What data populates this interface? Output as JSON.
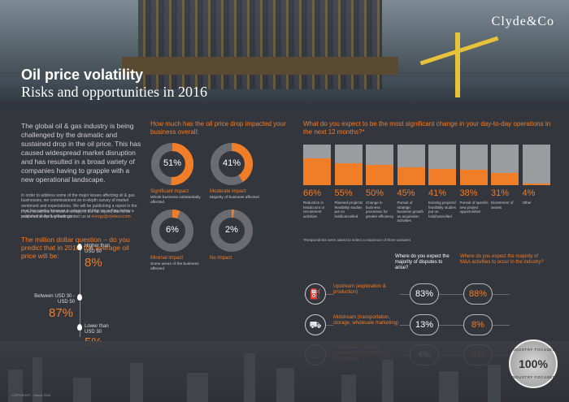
{
  "brand": {
    "logo_text": "Clyde&Co"
  },
  "header": {
    "title_line1": "Oil price volatility",
    "title_line2": "Risks and opportunities in 2016"
  },
  "intro": {
    "paragraph": "The global oil & gas industry is being challenged by the dramatic and sustained drop in the oil price. This has caused widespread market disruption and has resulted in a broad variety of companies having to grapple with a new operational landscape.",
    "small1": "In order to address some of the major issues affecting oil & gas businesses, we commissioned an in-depth survey of market sentiment and expectations. We will be publishing a report in the next few weeks however in advance of this, we outline below a snapshot of our key findings.",
    "small2": "If you would like to receive a copy of the full report, due to be published in April, please contact us at",
    "email": "energy@clydeco.com"
  },
  "million_question": {
    "heading": "The million dollar question – do you predict that in 2016, the average oil price will be:",
    "points": [
      {
        "label": "Higher than USD 50",
        "value": "8%"
      },
      {
        "label": "Between USD 30 - USD 50",
        "value": "87%"
      },
      {
        "label": "Lower than USD 30",
        "value": "5%"
      }
    ]
  },
  "impact": {
    "heading": "How much has the oil price drop impacted your business overall:",
    "items": [
      {
        "value": "51%",
        "pct": 51,
        "label": "Significant impact",
        "sub": "Whole business substantially affected"
      },
      {
        "value": "41%",
        "pct": 41,
        "label": "Moderate impact",
        "sub": "Majority of business affected"
      },
      {
        "value": "6%",
        "pct": 6,
        "label": "Minimal impact",
        "sub": "Some areas of the business affected"
      },
      {
        "value": "2%",
        "pct": 2,
        "label": "No impact",
        "sub": ""
      }
    ]
  },
  "changes": {
    "heading": "What do you expect to be the most significant change in your day-to-day operations in the next 12 months?*",
    "items": [
      {
        "value": "66%",
        "pct": 66,
        "label": "Reduction in headcount or recruitment activities"
      },
      {
        "value": "55%",
        "pct": 55,
        "label": "Planned projects/ feasibility studies put on hold/cancelled"
      },
      {
        "value": "50%",
        "pct": 50,
        "label": "Change in business processes for greater efficiency"
      },
      {
        "value": "45%",
        "pct": 45,
        "label": "Pursuit of strategic business growth as acquisition activities"
      },
      {
        "value": "41%",
        "pct": 41,
        "label": "Existing projects/ feasibility studies put on hold/cancelled"
      },
      {
        "value": "38%",
        "pct": 38,
        "label": "Pursuit of specific new project opportunities"
      },
      {
        "value": "31%",
        "pct": 31,
        "label": "Divestment of assets"
      },
      {
        "value": "4%",
        "pct": 4,
        "label": "Other"
      }
    ],
    "footnote": "*Respondents were asked to select a maximum of three answers"
  },
  "disputes": {
    "col1": "Where do you expect the majority of disputes to arise?",
    "col2": "Where do you expect the majority of M&A activities to occur in the industry?",
    "rows": [
      {
        "icon": "oil-well-icon",
        "label": "Upstream (exploration & production)",
        "disputes": "83%",
        "ma": "88%"
      },
      {
        "icon": "tanker-truck-icon",
        "label": "Midstream (transportation, storage, wholesale marketing)",
        "disputes": "13%",
        "ma": "8%"
      },
      {
        "icon": "refinery-icon",
        "label": "Downstream (refining, processing, marketing & distribution)",
        "disputes": "4%",
        "ma": "4%"
      }
    ]
  },
  "badge": {
    "top": "INDUSTRY FOCUSED",
    "center": "100%",
    "bottom": "INDUSTRY FOCUSED"
  },
  "footer": {
    "copyright": "COPYRIGHT - March 2016"
  },
  "colors": {
    "accent": "#f07d28",
    "background": "#34363d",
    "bar_bg": "#9a9ca0"
  }
}
